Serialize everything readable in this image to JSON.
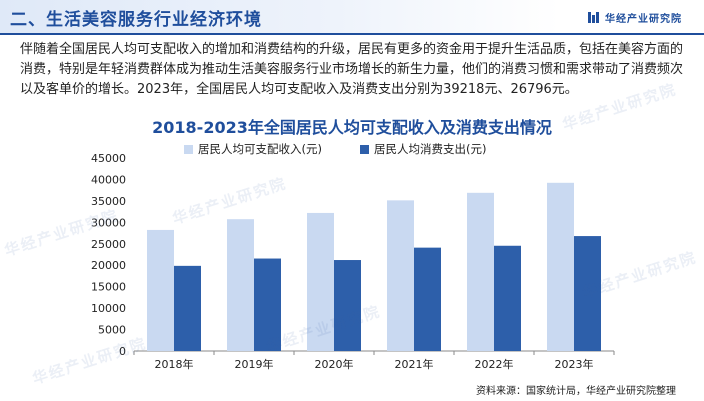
{
  "header": {
    "section_title": "二、生活美容服务行业经济环境",
    "brand": "华经产业研究院"
  },
  "paragraph": "伴随着全国居民人均可支配收入的增加和消费结构的升级，居民有更多的资金用于提升生活品质，包括在美容方面的消费，特别是年轻消费群体成为推动生活美容服务行业市场增长的新生力量，他们的消费习惯和需求带动了消费频次以及客单价的增长。2023年，全国居民人均可支配收入及消费支出分别为39218元、26796元。",
  "watermark": "华经产业研究院",
  "source": "资料来源：国家统计局，华经产业研究院整理",
  "colors": {
    "accent": "#1f4e9c",
    "income": "#c9d9f1",
    "expenditure": "#2d5faa"
  },
  "chart_data": {
    "type": "bar",
    "title": "2018-2023年全国居民人均可支配收入及消费支出情况",
    "categories": [
      "2018年",
      "2019年",
      "2020年",
      "2021年",
      "2022年",
      "2023年"
    ],
    "series": [
      {
        "name": "居民人均可支配收入(元)",
        "values": [
          28228,
          30733,
          32189,
          35128,
          36883,
          39218
        ]
      },
      {
        "name": "居民人均消费支出(元)",
        "values": [
          19853,
          21559,
          21210,
          24100,
          24538,
          26796
        ]
      }
    ],
    "ylim": [
      0,
      45000
    ],
    "yticks": [
      "0",
      "5000",
      "10000",
      "15000",
      "20000",
      "25000",
      "30000",
      "35000",
      "40000",
      "45000"
    ],
    "legend": "top",
    "grid": false
  }
}
